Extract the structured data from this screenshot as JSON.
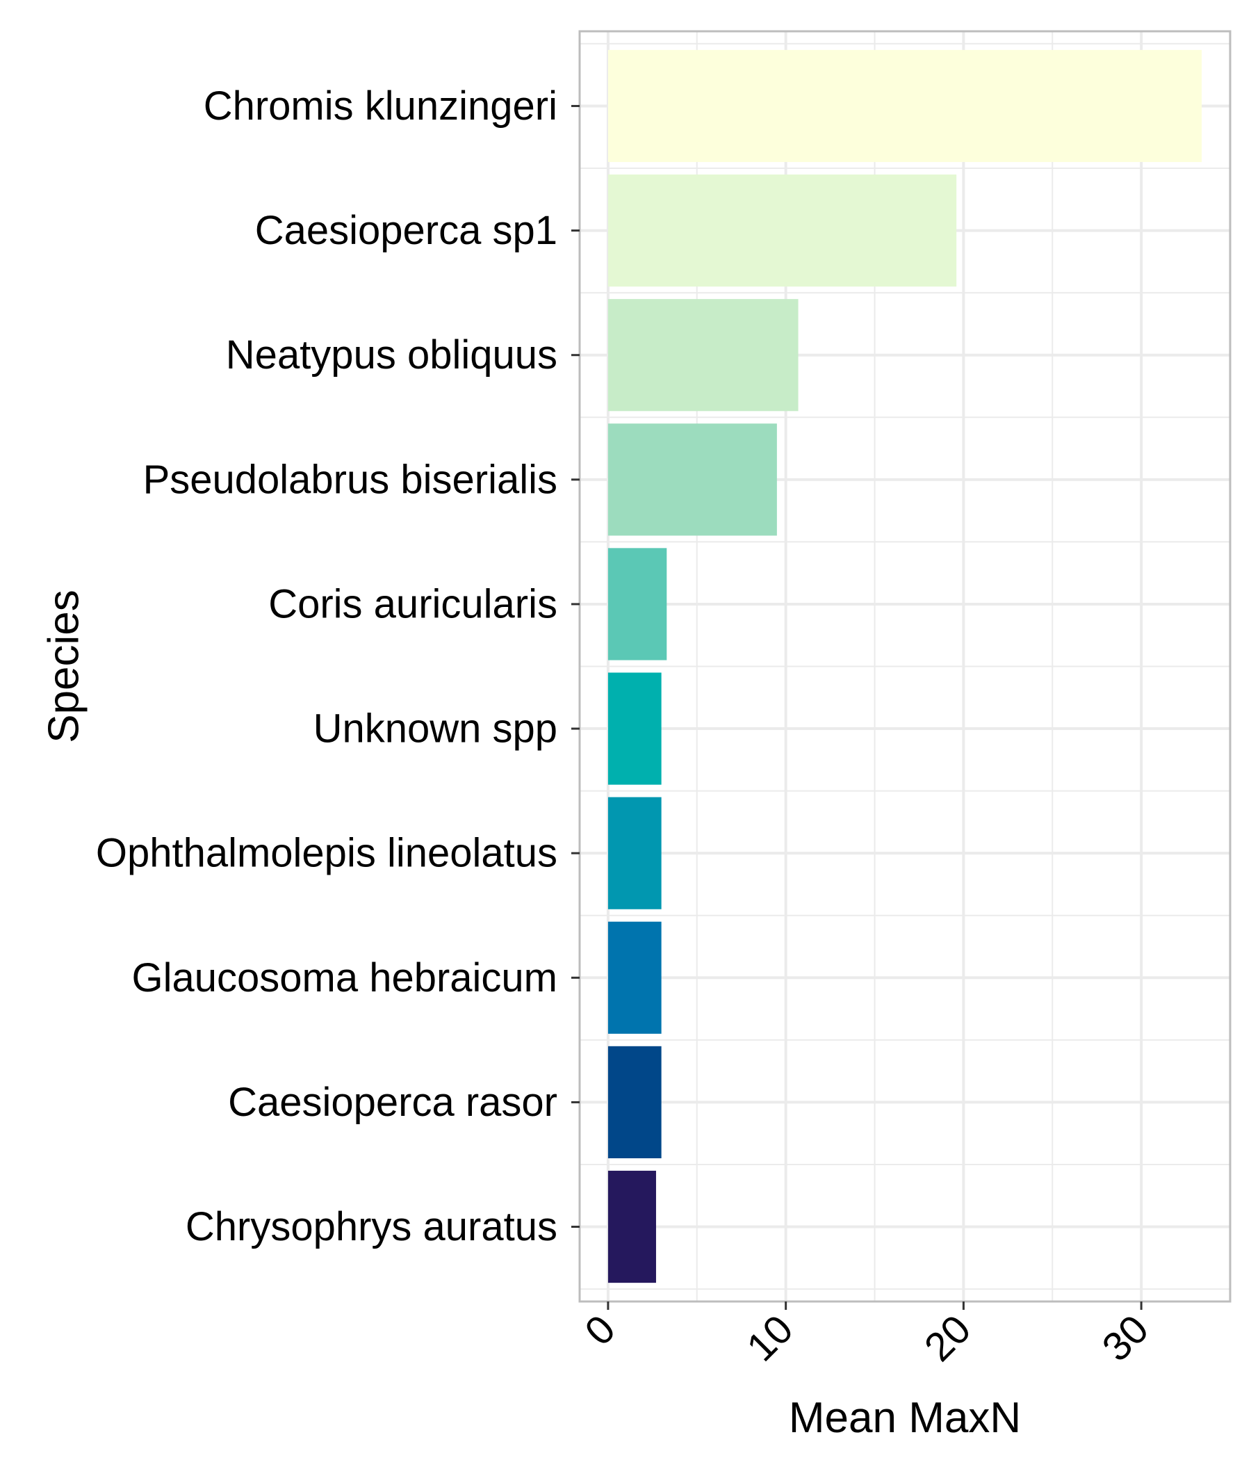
{
  "chart_data": {
    "type": "bar",
    "orientation": "horizontal",
    "title": "",
    "xlabel": "Mean MaxN",
    "ylabel": "Species",
    "categories": [
      "Chromis klunzingeri",
      "Caesioperca sp1",
      "Neatypus obliquus",
      "Pseudolabrus biserialis",
      "Coris auricularis",
      "Unknown spp",
      "Ophthalmolepis lineolatus",
      "Glaucosoma hebraicum",
      "Caesioperca rasor",
      "Chrysophrys auratus"
    ],
    "values": [
      33.4,
      19.6,
      10.7,
      9.5,
      3.3,
      3.0,
      3.0,
      3.0,
      3.0,
      2.7
    ],
    "colors": [
      "#fdffdc",
      "#e4f8d3",
      "#c7ecc8",
      "#9cdcbe",
      "#5bc8b5",
      "#00b0ae",
      "#0197b0",
      "#0074ae",
      "#014789",
      "#25185d"
    ],
    "xlim": [
      -1.6,
      35
    ],
    "xticks": [
      0,
      10,
      20,
      30
    ],
    "xtick_labels": [
      "0",
      "10",
      "20",
      "30"
    ],
    "grid": true,
    "legend": "none"
  }
}
